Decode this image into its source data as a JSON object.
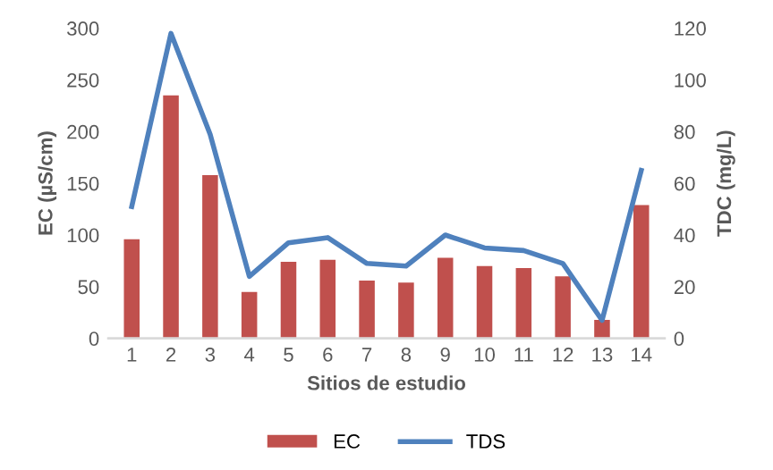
{
  "chart_data": {
    "type": "bar",
    "xlabel": "Sitios de estudio",
    "ylabel": "EC (µS/cm)",
    "y2label": "TDC (mg/L)",
    "categories": [
      "1",
      "2",
      "3",
      "4",
      "5",
      "6",
      "7",
      "8",
      "9",
      "10",
      "11",
      "12",
      "13",
      "14"
    ],
    "series": [
      {
        "name": "EC",
        "color": "#c0504d",
        "values": [
          96,
          235,
          158,
          45,
          74,
          76,
          56,
          54,
          78,
          70,
          68,
          60,
          18,
          129
        ]
      },
      {
        "name": "TDS",
        "type": "line",
        "axis": "y2",
        "color": "#4f81bd",
        "values": [
          51,
          118,
          79,
          24,
          37,
          39,
          29,
          28,
          40,
          35,
          34,
          29,
          7,
          65
        ]
      }
    ],
    "ylim": [
      0,
      300
    ],
    "yticks": [
      0,
      50,
      100,
      150,
      200,
      250,
      300
    ],
    "y2lim": [
      0,
      120
    ],
    "y2ticks": [
      0,
      20,
      40,
      60,
      80,
      100,
      120
    ],
    "grid": false,
    "legend": "bottom",
    "marker": "none"
  }
}
